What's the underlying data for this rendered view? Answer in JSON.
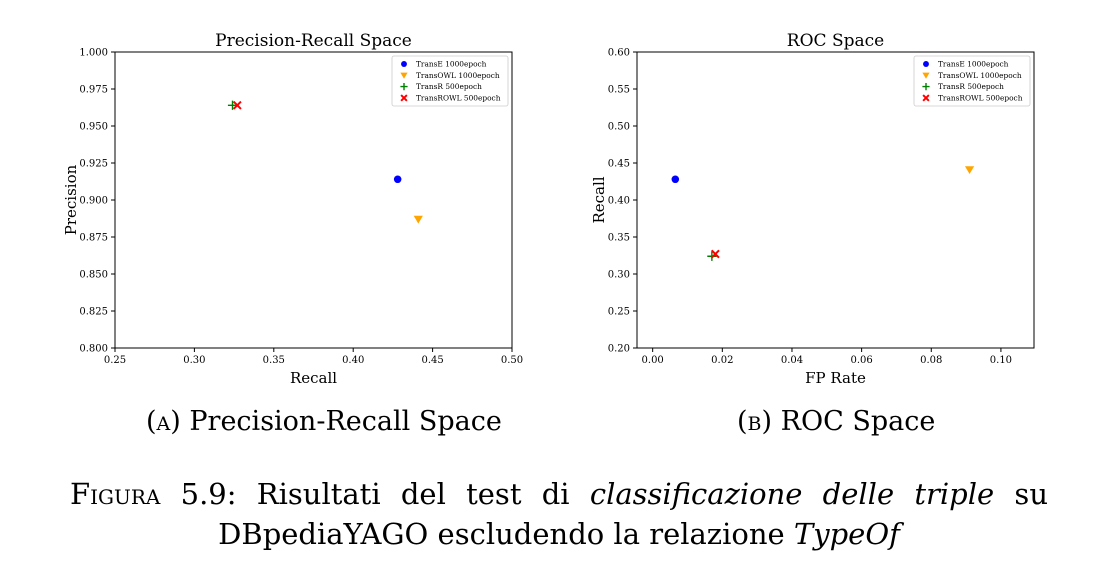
{
  "chart_data": [
    {
      "type": "scatter",
      "title": "Precision-Recall Space",
      "xlabel": "Recall",
      "ylabel": "Precision",
      "xlim": [
        0.25,
        0.5
      ],
      "ylim": [
        0.8,
        1.0
      ],
      "xticks": [
        "0.25",
        "0.30",
        "0.35",
        "0.40",
        "0.45",
        "0.50"
      ],
      "yticks": [
        "0.800",
        "0.825",
        "0.850",
        "0.875",
        "0.900",
        "0.925",
        "0.950",
        "0.975",
        "1.000"
      ],
      "legend_position": "top-right",
      "grid": false,
      "series": [
        {
          "name": "TransE 1000epoch",
          "marker": "circle",
          "color": "#0000ff",
          "points": [
            {
              "x": 0.428,
              "y": 0.914
            }
          ]
        },
        {
          "name": "TransOWL 1000epoch",
          "marker": "triangle-down",
          "color": "#ffa500",
          "points": [
            {
              "x": 0.441,
              "y": 0.887
            }
          ]
        },
        {
          "name": "TransR 500epoch",
          "marker": "plus",
          "color": "#008000",
          "points": [
            {
              "x": 0.324,
              "y": 0.964
            }
          ]
        },
        {
          "name": "TransROWL 500epoch",
          "marker": "x",
          "color": "#ff0000",
          "points": [
            {
              "x": 0.327,
              "y": 0.964
            }
          ]
        }
      ]
    },
    {
      "type": "scatter",
      "title": "ROC Space",
      "xlabel": "FP Rate",
      "ylabel": "Recall",
      "xlim": [
        -0.0045,
        0.1095
      ],
      "ylim": [
        0.2,
        0.6
      ],
      "xticks": [
        "0.00",
        "0.02",
        "0.04",
        "0.06",
        "0.08",
        "0.10"
      ],
      "yticks": [
        "0.20",
        "0.25",
        "0.30",
        "0.35",
        "0.40",
        "0.45",
        "0.50",
        "0.55",
        "0.60"
      ],
      "legend_position": "top-right",
      "grid": false,
      "series": [
        {
          "name": "TransE 1000epoch",
          "marker": "circle",
          "color": "#0000ff",
          "points": [
            {
              "x": 0.0065,
              "y": 0.428
            }
          ]
        },
        {
          "name": "TransOWL 1000epoch",
          "marker": "triangle-down",
          "color": "#ffa500",
          "points": [
            {
              "x": 0.091,
              "y": 0.441
            }
          ]
        },
        {
          "name": "TransR 500epoch",
          "marker": "plus",
          "color": "#008000",
          "points": [
            {
              "x": 0.017,
              "y": 0.324
            }
          ]
        },
        {
          "name": "TransROWL 500epoch",
          "marker": "x",
          "color": "#ff0000",
          "points": [
            {
              "x": 0.018,
              "y": 0.327
            }
          ]
        }
      ]
    }
  ],
  "subcaptions": {
    "a_label": "(a)",
    "a_text": " Precision-Recall Space",
    "b_label": "(b)",
    "b_text": " ROC Space"
  },
  "caption": {
    "label": "Figura 5.9:",
    "part1": " Risultati del test di ",
    "em1": "classificazione delle triple",
    "part2": " su DBpediaYAGO escludendo la relazione ",
    "em2": "TypeOf"
  }
}
